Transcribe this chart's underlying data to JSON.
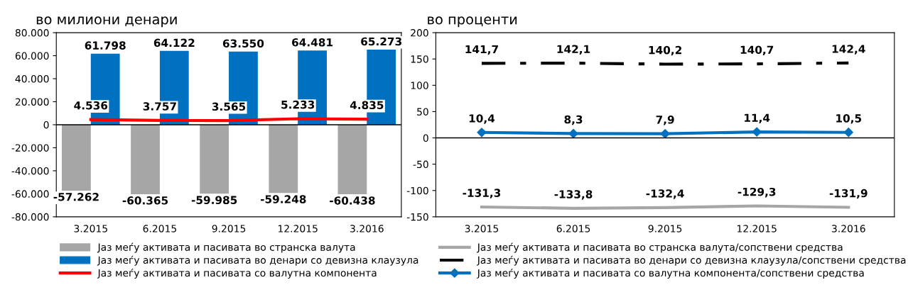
{
  "chart_data": [
    {
      "type": "bar",
      "subtitle": "во милиони денари",
      "categories": [
        "3.2015",
        "6.2015",
        "9.2015",
        "12.2015",
        "3.2016"
      ],
      "ylim": [
        -80000,
        80000
      ],
      "yticks": [
        {
          "value": -80000,
          "label": "-80.000"
        },
        {
          "value": -60000,
          "label": "-60.000"
        },
        {
          "value": -40000,
          "label": "-40.000"
        },
        {
          "value": -20000,
          "label": "-20.000"
        },
        {
          "value": 0,
          "label": "0"
        },
        {
          "value": 20000,
          "label": "20.000"
        },
        {
          "value": 40000,
          "label": "40.000"
        },
        {
          "value": 60000,
          "label": "60.000"
        },
        {
          "value": 80000,
          "label": "80.000"
        }
      ],
      "legend": "bottom",
      "series": [
        {
          "name": "Јаз меѓу активата и пасивата во странска валута",
          "color": "#a6a6a6",
          "values": [
            -57262,
            -60365,
            -59985,
            -59248,
            -60438
          ],
          "value_labels": [
            "-57.262",
            "-60.365",
            "-59.985",
            "-59.248",
            "-60.438"
          ]
        },
        {
          "name": "Јаз меѓу активата и пасивата во денари со девизна клаузула",
          "color": "#0070c0",
          "values": [
            61798,
            64122,
            63550,
            64481,
            65273
          ],
          "value_labels": [
            "61.798",
            "64.122",
            "63.550",
            "64.481",
            "65.273"
          ]
        },
        {
          "name": "Јаз меѓу активата и пасивата со валутна компонента",
          "type": "line",
          "color": "#ff0000",
          "values": [
            4536,
            3757,
            3565,
            5233,
            4835
          ],
          "value_labels": [
            "4.536",
            "3.757",
            "3.565",
            "5.233",
            "4.835"
          ]
        }
      ]
    },
    {
      "type": "line",
      "subtitle": "во проценти",
      "categories": [
        "3.2015",
        "6.2015",
        "9.2015",
        "12.2015",
        "3.2016"
      ],
      "ylim": [
        -150,
        200
      ],
      "yticks": [
        -150,
        -100,
        -50,
        0,
        50,
        100,
        150,
        200
      ],
      "legend": "bottom",
      "series": [
        {
          "name": "Јаз меѓу активата и пасивата во странска валута/сопствени средства",
          "color": "#a6a6a6",
          "line_style": "solid",
          "values": [
            -131.3,
            -133.8,
            -132.4,
            -129.3,
            -131.9
          ],
          "value_labels": [
            "-131,3",
            "-133,8",
            "-132,4",
            "-129,3",
            "-131,9"
          ]
        },
        {
          "name": "Јаз меѓу активата и пасивата во денари со девизна клаузула/сопствени средства",
          "color": "#000000",
          "line_style": "dashed",
          "values": [
            141.7,
            142.1,
            140.2,
            140.7,
            142.4
          ],
          "value_labels": [
            "141,7",
            "142,1",
            "140,2",
            "140,7",
            "142,4"
          ]
        },
        {
          "name": "Јаз меѓу активата и пасивата со валутна компонента/сопствени средства",
          "color": "#0070c0",
          "line_style": "solid",
          "marker": "diamond",
          "values": [
            10.4,
            8.3,
            7.9,
            11.4,
            10.5
          ],
          "value_labels": [
            "10,4",
            "8,3",
            "7,9",
            "11,4",
            "10,5"
          ]
        }
      ]
    }
  ]
}
